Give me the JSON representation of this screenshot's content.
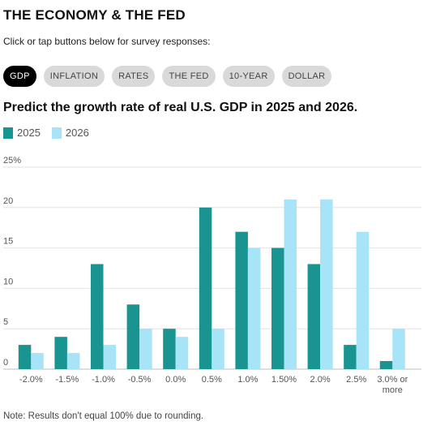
{
  "header": {
    "title": "THE ECONOMY & THE FED",
    "subtitle": "Click or tap buttons below for survey responses:"
  },
  "buttons": [
    {
      "label": "GDP",
      "active": true
    },
    {
      "label": "INFLATION",
      "active": false
    },
    {
      "label": "RATES",
      "active": false
    },
    {
      "label": "THE FED",
      "active": false
    },
    {
      "label": "10-YEAR",
      "active": false
    },
    {
      "label": "DOLLAR",
      "active": false
    }
  ],
  "colors": {
    "s2025": "#1a9491",
    "s2026": "#a8e4f7",
    "grid": "#e2e2e2",
    "tick": "#555555"
  },
  "chart_data": {
    "type": "bar",
    "title": "Predict the growth rate of real U.S. GDP in 2025 and 2026.",
    "categories": [
      "-2.0%",
      "-1.5%",
      "-1.0%",
      "-0.5%",
      "0.0%",
      "0.5%",
      "1.0%",
      "1.50%",
      "2.0%",
      "2.5%",
      "3.0% or more"
    ],
    "series": [
      {
        "name": "2025",
        "values": [
          3,
          4,
          13,
          8,
          5,
          20,
          17,
          15,
          13,
          3,
          1
        ]
      },
      {
        "name": "2026",
        "values": [
          2,
          2,
          3,
          5,
          4,
          5,
          15,
          21,
          21,
          17,
          5
        ]
      }
    ],
    "ylim": [
      0,
      25
    ],
    "yticks": [
      "25%",
      "20",
      "15",
      "10",
      "5",
      "0"
    ],
    "grid": true,
    "legend": "top-left"
  },
  "note": "Note: Results don't equal 100% due to rounding."
}
